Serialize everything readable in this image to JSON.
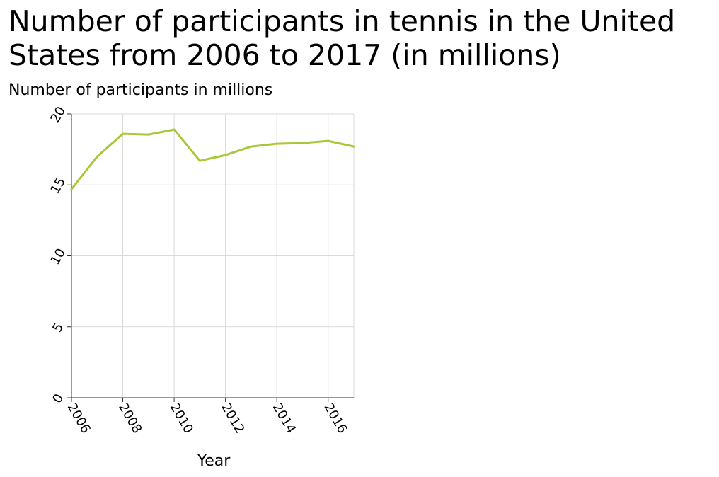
{
  "chart_data": {
    "type": "line",
    "title": "Number of participants in tennis in the United States from 2006 to 2017 (in millions)",
    "xlabel": "Year",
    "ylabel": "Number of participants in millions",
    "x": [
      2006,
      2007,
      2008,
      2009,
      2010,
      2011,
      2012,
      2013,
      2014,
      2015,
      2016,
      2017
    ],
    "series": [
      {
        "values": [
          14.7,
          17.0,
          18.6,
          18.55,
          18.9,
          16.7,
          17.1,
          17.7,
          17.9,
          17.95,
          18.1,
          17.7
        ]
      }
    ],
    "xlim": [
      2006,
      2017
    ],
    "ylim": [
      0,
      20
    ],
    "x_ticks": [
      "2006",
      "2008",
      "2010",
      "2012",
      "2014",
      "2016"
    ],
    "y_ticks": [
      "0",
      "5",
      "10",
      "15",
      "20"
    ],
    "grid": true,
    "line_color": "#a8c83a"
  }
}
